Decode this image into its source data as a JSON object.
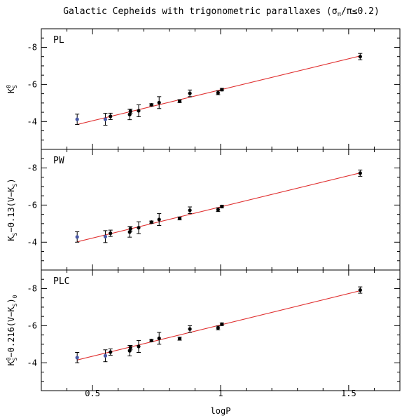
{
  "figure": {
    "title": "Galactic Cepheids with trigonometric parallaxes (σ",
    "title_sub": "π",
    "title_tail": "/π≤0.2)",
    "xlabel": "logP",
    "colors": {
      "fit_line": "#e03030",
      "points_black": "#000000",
      "points_blue": "#4a5aa8",
      "axes": "#000000"
    }
  },
  "chart_data": [
    {
      "type": "scatter",
      "panel_label": "PL",
      "ylabel": {
        "main": "K",
        "sup": "0",
        "sub": "S"
      },
      "xlim": [
        0.3,
        1.7
      ],
      "ylim": [
        -9,
        -2.5
      ],
      "y_inverted": true,
      "x_ticks": [
        0.5,
        1.0,
        1.5
      ],
      "x_tick_labels": [
        "0.5",
        "1",
        "1.5"
      ],
      "y_ticks": [
        -8,
        -6,
        -4
      ],
      "y_tick_labels": [
        "-8",
        "-6",
        "-4"
      ],
      "fit_line": {
        "x": [
          0.44,
          1.55
        ],
        "y": [
          -3.84,
          -7.55
        ]
      },
      "series": [
        {
          "color": "blue",
          "points": [
            {
              "x": 0.44,
              "y": -4.12,
              "err": 0.28
            },
            {
              "x": 0.55,
              "y": -4.12,
              "err": 0.32
            }
          ]
        },
        {
          "color": "black",
          "points": [
            {
              "x": 0.57,
              "y": -4.28,
              "err": 0.17
            },
            {
              "x": 0.645,
              "y": -4.38,
              "err": 0.28
            },
            {
              "x": 0.648,
              "y": -4.55,
              "err": 0.12
            },
            {
              "x": 0.68,
              "y": -4.58,
              "err": 0.32
            },
            {
              "x": 0.73,
              "y": -4.9,
              "err": 0.06
            },
            {
              "x": 0.76,
              "y": -5.02,
              "err": 0.32
            },
            {
              "x": 0.84,
              "y": -5.1,
              "err": 0.08
            },
            {
              "x": 0.88,
              "y": -5.52,
              "err": 0.18
            },
            {
              "x": 0.99,
              "y": -5.55,
              "err": 0.1
            },
            {
              "x": 1.005,
              "y": -5.72,
              "err": 0.07
            },
            {
              "x": 1.545,
              "y": -7.5,
              "err": 0.17
            }
          ]
        }
      ]
    },
    {
      "type": "scatter",
      "panel_label": "PW",
      "ylabel": {
        "main": "K",
        "sub": "S",
        "mid": "−0.13(V−K",
        "sub2": "S",
        "tail": ")"
      },
      "xlim": [
        0.3,
        1.7
      ],
      "ylim": [
        -9,
        -2.5
      ],
      "y_inverted": true,
      "x_ticks": [
        0.5,
        1.0,
        1.5
      ],
      "y_ticks": [
        -8,
        -6,
        -4
      ],
      "y_tick_labels": [
        "-8",
        "-6",
        "-4"
      ],
      "fit_line": {
        "x": [
          0.44,
          1.55
        ],
        "y": [
          -4.02,
          -7.75
        ]
      },
      "series": [
        {
          "color": "blue",
          "points": [
            {
              "x": 0.44,
              "y": -4.28,
              "err": 0.28
            },
            {
              "x": 0.55,
              "y": -4.3,
              "err": 0.32
            }
          ]
        },
        {
          "color": "black",
          "points": [
            {
              "x": 0.57,
              "y": -4.48,
              "err": 0.17
            },
            {
              "x": 0.645,
              "y": -4.55,
              "err": 0.28
            },
            {
              "x": 0.648,
              "y": -4.72,
              "err": 0.12
            },
            {
              "x": 0.68,
              "y": -4.78,
              "err": 0.32
            },
            {
              "x": 0.73,
              "y": -5.08,
              "err": 0.06
            },
            {
              "x": 0.76,
              "y": -5.22,
              "err": 0.32
            },
            {
              "x": 0.84,
              "y": -5.28,
              "err": 0.08
            },
            {
              "x": 0.88,
              "y": -5.72,
              "err": 0.18
            },
            {
              "x": 0.99,
              "y": -5.75,
              "err": 0.1
            },
            {
              "x": 1.005,
              "y": -5.92,
              "err": 0.07
            },
            {
              "x": 1.545,
              "y": -7.72,
              "err": 0.17
            }
          ]
        }
      ]
    },
    {
      "type": "scatter",
      "panel_label": "PLC",
      "ylabel": {
        "main": "K",
        "sup": "0",
        "sub": "S",
        "mid": "−0.216(V−K",
        "sub2": "S",
        "tail": ")",
        "sub3": "0"
      },
      "xlim": [
        0.3,
        1.7
      ],
      "ylim": [
        -9,
        -2.5
      ],
      "y_inverted": true,
      "x_ticks": [
        0.5,
        1.0,
        1.5
      ],
      "y_ticks": [
        -8,
        -6,
        -4
      ],
      "y_tick_labels": [
        "-8",
        "-6",
        "-4"
      ],
      "fit_line": {
        "x": [
          0.44,
          1.55
        ],
        "y": [
          -4.15,
          -7.9
        ]
      },
      "series": [
        {
          "color": "blue",
          "points": [
            {
              "x": 0.44,
              "y": -4.28,
              "err": 0.28
            },
            {
              "x": 0.55,
              "y": -4.38,
              "err": 0.32
            }
          ]
        },
        {
          "color": "black",
          "points": [
            {
              "x": 0.57,
              "y": -4.58,
              "err": 0.17
            },
            {
              "x": 0.645,
              "y": -4.65,
              "err": 0.28
            },
            {
              "x": 0.648,
              "y": -4.82,
              "err": 0.12
            },
            {
              "x": 0.68,
              "y": -4.88,
              "err": 0.32
            },
            {
              "x": 0.73,
              "y": -5.2,
              "err": 0.06
            },
            {
              "x": 0.76,
              "y": -5.32,
              "err": 0.32
            },
            {
              "x": 0.84,
              "y": -5.3,
              "err": 0.08
            },
            {
              "x": 0.88,
              "y": -5.82,
              "err": 0.18
            },
            {
              "x": 0.99,
              "y": -5.88,
              "err": 0.1
            },
            {
              "x": 1.005,
              "y": -6.08,
              "err": 0.07
            },
            {
              "x": 1.545,
              "y": -7.92,
              "err": 0.17
            }
          ]
        }
      ]
    }
  ]
}
